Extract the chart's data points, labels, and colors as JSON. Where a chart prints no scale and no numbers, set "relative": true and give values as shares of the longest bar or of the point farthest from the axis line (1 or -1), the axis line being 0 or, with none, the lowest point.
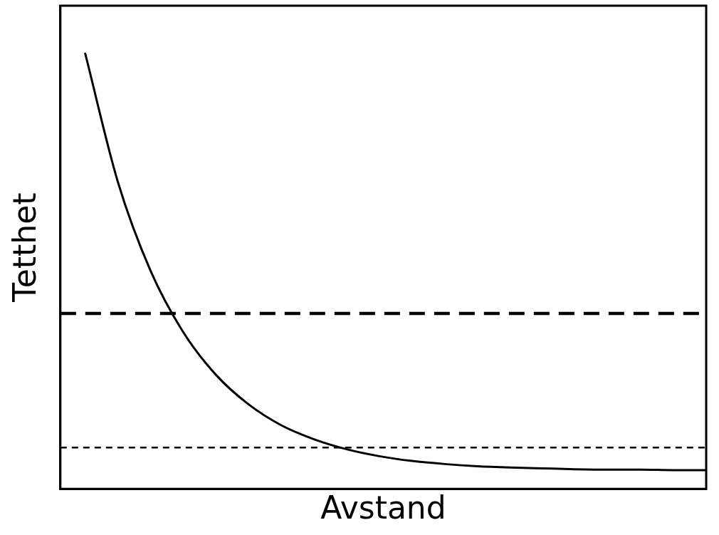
{
  "chart_data": {
    "type": "line",
    "relative": true,
    "xlabel": "Avstand",
    "ylabel": "Tetthet",
    "grid": false,
    "marker": "none",
    "line_style": "solid",
    "categories": [
      null,
      null,
      null,
      null,
      null,
      null,
      null,
      null,
      null,
      null,
      null,
      null,
      null,
      null,
      null,
      null,
      null,
      null,
      null,
      null
    ],
    "series": [
      {
        "color": "#000000",
        "values": [
          1,
          0.705,
          0.501,
          0.36,
          0.262,
          0.194,
          0.146,
          0.114,
          0.091,
          0.075,
          0.064,
          0.057,
          0.052,
          0.049,
          0.047,
          0.045,
          0.044,
          0.044,
          0.043,
          0.043
        ]
      }
    ],
    "ref_lines": [
      {
        "axis": "y",
        "value": 0.403,
        "color": "#000000",
        "line_style": "dashed"
      },
      {
        "axis": "y",
        "value": 0.095,
        "color": "#000000",
        "line_style": "dotted"
      }
    ]
  }
}
